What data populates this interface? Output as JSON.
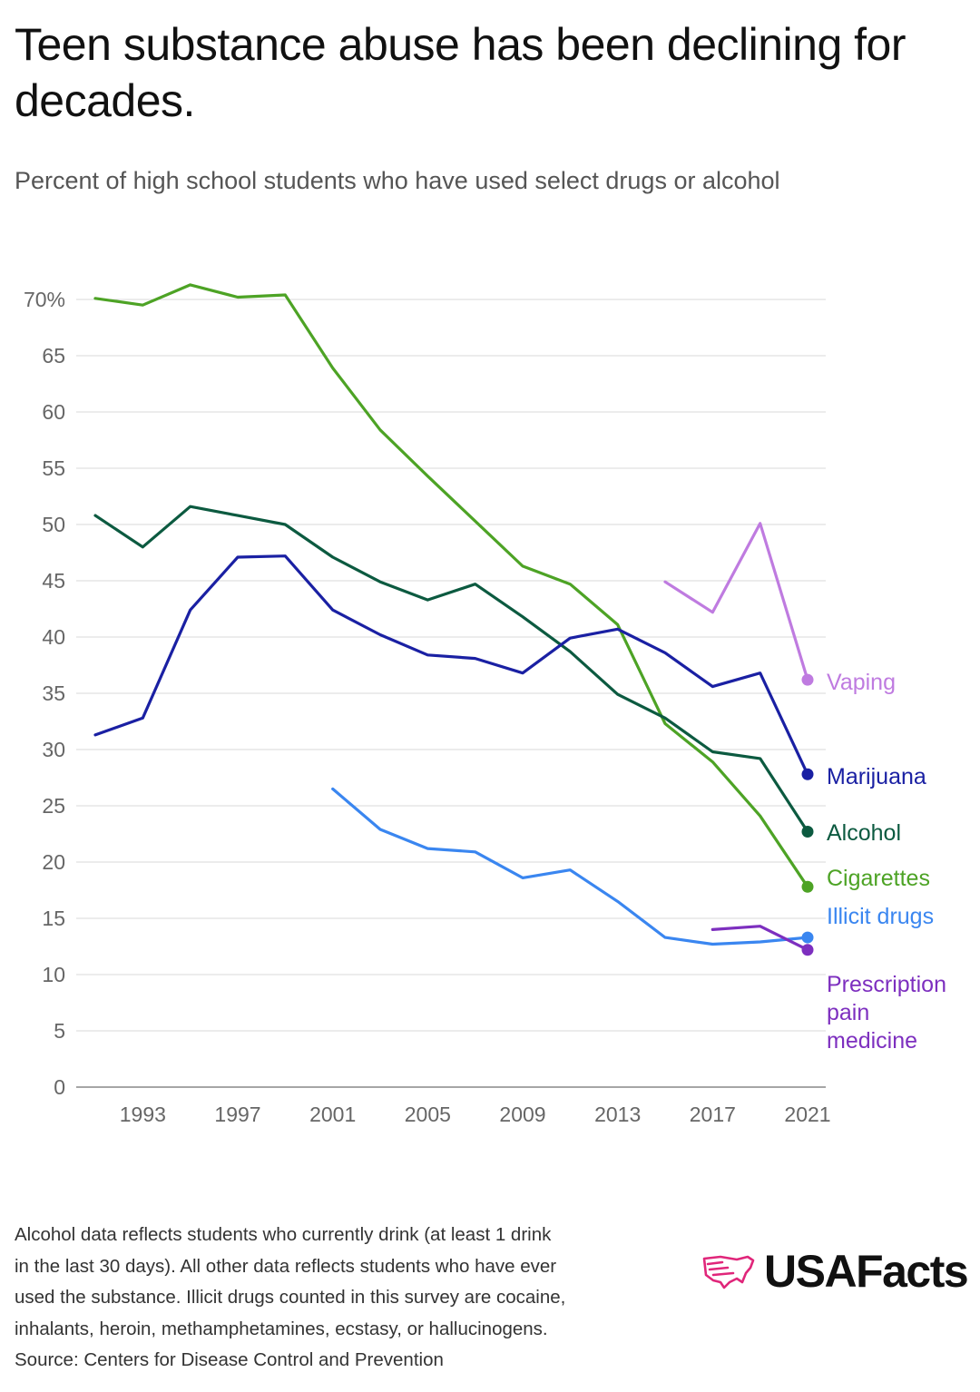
{
  "header": {
    "title": "Teen substance abuse has been declining for decades.",
    "subtitle": "Percent of high school students who have used select drugs or alcohol"
  },
  "chart_data": {
    "type": "line",
    "title": "Teen substance abuse has been declining for decades.",
    "subtitle": "Percent of high school students who have used select drugs or alcohol",
    "xlabel": "",
    "ylabel": "",
    "xlim": [
      1991,
      2021
    ],
    "ylim": [
      0,
      70
    ],
    "grid": true,
    "x_ticks": [
      1993,
      1997,
      2001,
      2005,
      2009,
      2013,
      2017,
      2021
    ],
    "y_ticks": [
      {
        "value": 0,
        "label": "0"
      },
      {
        "value": 5,
        "label": "5"
      },
      {
        "value": 10,
        "label": "10"
      },
      {
        "value": 15,
        "label": "15"
      },
      {
        "value": 20,
        "label": "20"
      },
      {
        "value": 25,
        "label": "25"
      },
      {
        "value": 30,
        "label": "30"
      },
      {
        "value": 35,
        "label": "35"
      },
      {
        "value": 40,
        "label": "40"
      },
      {
        "value": 45,
        "label": "45"
      },
      {
        "value": 50,
        "label": "50"
      },
      {
        "value": 55,
        "label": "55"
      },
      {
        "value": 60,
        "label": "60"
      },
      {
        "value": 65,
        "label": "65"
      },
      {
        "value": 70,
        "label": "70%"
      }
    ],
    "series": [
      {
        "name": "Cigarettes",
        "key": "cigarettes",
        "color": "#4da325",
        "x": [
          1991,
          1993,
          1995,
          1997,
          1999,
          2001,
          2003,
          2005,
          2007,
          2009,
          2011,
          2013,
          2015,
          2017,
          2019,
          2021
        ],
        "values": [
          70.1,
          69.5,
          71.3,
          70.2,
          70.4,
          63.9,
          58.4,
          54.3,
          50.3,
          46.3,
          44.7,
          41.1,
          32.3,
          28.9,
          24.1,
          17.8
        ]
      },
      {
        "name": "Alcohol",
        "key": "alcohol",
        "color": "#0c5a40",
        "x": [
          1991,
          1993,
          1995,
          1997,
          1999,
          2001,
          2003,
          2005,
          2007,
          2009,
          2011,
          2013,
          2015,
          2017,
          2019,
          2021
        ],
        "values": [
          50.8,
          48.0,
          51.6,
          50.8,
          50.0,
          47.1,
          44.9,
          43.3,
          44.7,
          41.8,
          38.7,
          34.9,
          32.8,
          29.8,
          29.2,
          22.7
        ]
      },
      {
        "name": "Marijuana",
        "key": "marijuana",
        "color": "#1a20a3",
        "x": [
          1991,
          1993,
          1995,
          1997,
          1999,
          2001,
          2003,
          2005,
          2007,
          2009,
          2011,
          2013,
          2015,
          2017,
          2019,
          2021
        ],
        "values": [
          31.3,
          32.8,
          42.4,
          47.1,
          47.2,
          42.4,
          40.2,
          38.4,
          38.1,
          36.8,
          39.9,
          40.7,
          38.6,
          35.6,
          36.8,
          27.8
        ]
      },
      {
        "name": "Illicit drugs",
        "key": "illicit",
        "color": "#3a86f0",
        "x": [
          2001,
          2003,
          2005,
          2007,
          2009,
          2011,
          2013,
          2015,
          2017,
          2019,
          2021
        ],
        "values": [
          26.5,
          22.9,
          21.2,
          20.9,
          18.6,
          19.3,
          16.5,
          13.3,
          12.7,
          12.9,
          13.3
        ]
      },
      {
        "name": "Vaping",
        "key": "vaping",
        "color": "#bf7be0",
        "x": [
          2015,
          2017,
          2019,
          2021
        ],
        "values": [
          44.9,
          42.2,
          50.1,
          36.2
        ]
      },
      {
        "name": "Prescription pain medicine",
        "key": "painmed",
        "color": "#7d2fbf",
        "x": [
          2017,
          2019,
          2021
        ],
        "values": [
          14.0,
          14.3,
          12.2
        ]
      }
    ],
    "end_labels": {
      "vaping": [
        "Vaping"
      ],
      "marijuana": [
        "Marijuana"
      ],
      "alcohol": [
        "Alcohol"
      ],
      "cigarettes": [
        "Cigarettes"
      ],
      "illicit": [
        "Illicit drugs"
      ],
      "painmed": [
        "Prescription",
        "pain",
        "medicine"
      ]
    }
  },
  "footnote": {
    "lines": [
      "Alcohol data reflects students who currently drink (at least 1 drink",
      "in the last 30 days). All other data reflects students who have ever",
      "used the substance. Illicit drugs counted in this survey are cocaine,",
      "inhalants, heroin, methamphetamines, ecstasy, or hallucinogens.",
      "Source: Centers for Disease Control and Prevention"
    ]
  },
  "brand": {
    "name": "USAFacts",
    "logo_icon": "usa-map-logo-icon",
    "logo_color": "#e0267a"
  }
}
